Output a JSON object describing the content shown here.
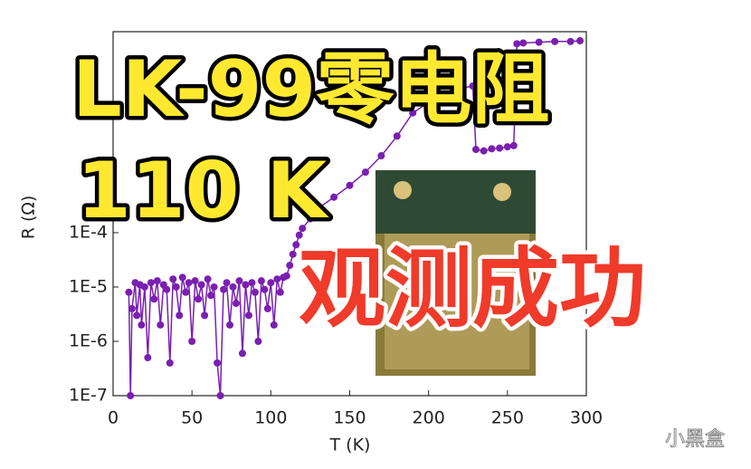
{
  "chart_data": {
    "type": "scatter",
    "xlabel": "T (K)",
    "ylabel": "R (Ω)",
    "xlim": [
      0,
      300
    ],
    "xticks": [
      0,
      50,
      100,
      150,
      200,
      250,
      300
    ],
    "ylim": [
      1e-07,
      0.5
    ],
    "log_y": true,
    "yticks": [
      {
        "value": 1e-07,
        "label": "1E-7"
      },
      {
        "value": 1e-06,
        "label": "1E-6"
      },
      {
        "value": 1e-05,
        "label": "1E-5"
      },
      {
        "value": 0.0001,
        "label": "1E-4"
      }
    ],
    "series": [
      {
        "name": "LK-99",
        "color": "#7a1fb0",
        "x": [
          10,
          11,
          12,
          14,
          15,
          17,
          18,
          20,
          22,
          24,
          26,
          28,
          30,
          32,
          34,
          36,
          38,
          40,
          42,
          44,
          46,
          48,
          50,
          52,
          54,
          56,
          58,
          60,
          62,
          64,
          66,
          68,
          70,
          72,
          74,
          76,
          78,
          80,
          82,
          84,
          86,
          88,
          90,
          92,
          94,
          96,
          98,
          100,
          102,
          104,
          106,
          108,
          110,
          112,
          114,
          116,
          118,
          120,
          125,
          130,
          140,
          150,
          160,
          170,
          180,
          190,
          200,
          210,
          220,
          228,
          230,
          235,
          240,
          245,
          250,
          254,
          256,
          260,
          270,
          280,
          290,
          296
        ],
        "values": [
          8e-06,
          1e-07,
          4e-06,
          1.2e-05,
          3e-06,
          1.1e-05,
          2e-06,
          1e-05,
          5e-07,
          1.2e-05,
          6e-06,
          1.3e-05,
          2e-06,
          1.1e-05,
          9e-06,
          4e-07,
          1.4e-05,
          1e-05,
          3e-06,
          1.5e-05,
          8e-06,
          1.2e-05,
          1e-06,
          1.3e-05,
          6e-06,
          1.1e-05,
          3e-06,
          1.4e-05,
          7e-06,
          1e-05,
          4e-07,
          1e-07,
          9e-06,
          1.2e-05,
          2e-06,
          1e-05,
          5e-06,
          1.3e-05,
          6e-07,
          1.1e-05,
          3e-06,
          1.2e-05,
          8e-06,
          1e-06,
          1.3e-05,
          9e-06,
          4e-06,
          1.2e-05,
          2e-06,
          1.4e-05,
          8e-06,
          1.5e-05,
          1.6e-05,
          2.5e-05,
          4e-05,
          6e-05,
          9e-05,
          0.00012,
          0.00018,
          0.00028,
          0.00045,
          0.00074,
          0.0013,
          0.0026,
          0.006,
          0.016,
          0.025,
          0.035,
          0.045,
          0.05,
          0.0034,
          0.0032,
          0.0035,
          0.0036,
          0.0038,
          0.004,
          0.3,
          0.31,
          0.32,
          0.33,
          0.33,
          0.34
        ]
      }
    ]
  },
  "overlay": {
    "title": "LK-99零电阻",
    "subtitle": "110 K",
    "caption": "观测成功",
    "watermark": "小黑盒"
  }
}
